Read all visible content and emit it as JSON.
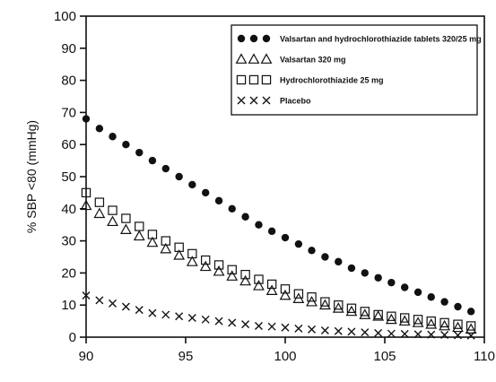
{
  "chart_data": {
    "type": "scatter",
    "title": "",
    "xlabel": "",
    "ylabel": "% SBP <80 (mmHg)",
    "xlim": [
      90,
      110
    ],
    "ylim": [
      0,
      100
    ],
    "xticks": [
      90,
      95,
      100,
      105,
      110
    ],
    "yticks": [
      0,
      10,
      20,
      30,
      40,
      50,
      60,
      70,
      80,
      90,
      100
    ],
    "grid": false,
    "legend_position": "top-right",
    "x": [
      90,
      90.67,
      91.33,
      92,
      92.67,
      93.33,
      94,
      94.67,
      95.33,
      96,
      96.67,
      97.33,
      98,
      98.67,
      99.33,
      100,
      100.67,
      101.33,
      102,
      102.67,
      103.33,
      104,
      104.67,
      105.33,
      106,
      106.67,
      107.33,
      108,
      108.67,
      109.33
    ],
    "series": [
      {
        "name": "Valsartan and hydrochlorothiazide tablets 320/25 mg",
        "marker": "filled-circle",
        "values": [
          68,
          65,
          62.5,
          60,
          57.5,
          55,
          52.5,
          50,
          47.5,
          45,
          42.5,
          40,
          37.5,
          35,
          33,
          31,
          29,
          27,
          25,
          23.5,
          21.5,
          20,
          18.5,
          17,
          15.5,
          14,
          12.5,
          11,
          9.5,
          8
        ]
      },
      {
        "name": "Valsartan 320 mg",
        "marker": "triangle",
        "values": [
          41,
          38.5,
          36,
          33.5,
          31.5,
          29.5,
          27.5,
          25.5,
          23.5,
          22,
          20.5,
          19,
          17.5,
          16,
          14.5,
          13,
          12,
          11,
          10,
          9,
          8,
          7,
          6.5,
          5.5,
          5,
          4.5,
          4,
          3.5,
          3,
          2.5
        ]
      },
      {
        "name": "Hydrochlorothiazide 25 mg",
        "marker": "open-square",
        "values": [
          45,
          42,
          39.5,
          37,
          34.5,
          32,
          30,
          28,
          26,
          24,
          22.5,
          21,
          19.5,
          18,
          16.5,
          15,
          13.5,
          12.5,
          11,
          10,
          9,
          8,
          7,
          6.5,
          6,
          5.5,
          5,
          4.5,
          4,
          3.5
        ]
      },
      {
        "name": "Placebo",
        "marker": "x",
        "values": [
          13,
          11.5,
          10.5,
          9.5,
          8.5,
          7.5,
          7,
          6.5,
          6,
          5.5,
          5,
          4.5,
          4,
          3.5,
          3.3,
          3,
          2.7,
          2.4,
          2.1,
          1.9,
          1.7,
          1.5,
          1.3,
          1.1,
          1,
          0.9,
          0.8,
          0.7,
          0.6,
          0.5
        ]
      }
    ]
  }
}
